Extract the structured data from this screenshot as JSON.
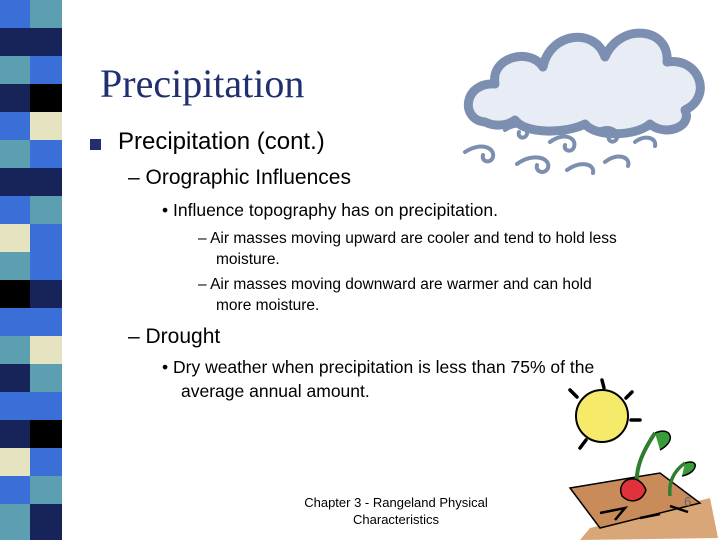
{
  "slide": {
    "title": "Precipitation",
    "level1": "Precipitation (cont.)",
    "orographic": {
      "heading": "– Orographic Influences",
      "point": "• Influence topography has on precipitation.",
      "sub1_line1": "– Air masses moving upward are cooler and tend to hold less",
      "sub1_line2": "moisture.",
      "sub2_line1": "– Air masses moving downward are warmer and can hold",
      "sub2_line2": "more moisture."
    },
    "drought": {
      "heading": "– Drought",
      "point_line1": "• Dry weather when precipitation is less than 75% of the",
      "point_line2": "average annual amount."
    }
  },
  "footer": {
    "line1": "Chapter 3 - Rangeland Physical",
    "line2": "Characteristics",
    "page_number": "6"
  },
  "icons": [
    "rain-cloud-icon",
    "drought-sun-plant-icon"
  ],
  "colors": {
    "title": "#1f2f6f",
    "stripe_blue": "#3a6fd8",
    "stripe_navy": "#17245a",
    "stripe_teal": "#5c9fb0",
    "stripe_cream": "#e6e4c0",
    "stripe_black": "#000000"
  }
}
